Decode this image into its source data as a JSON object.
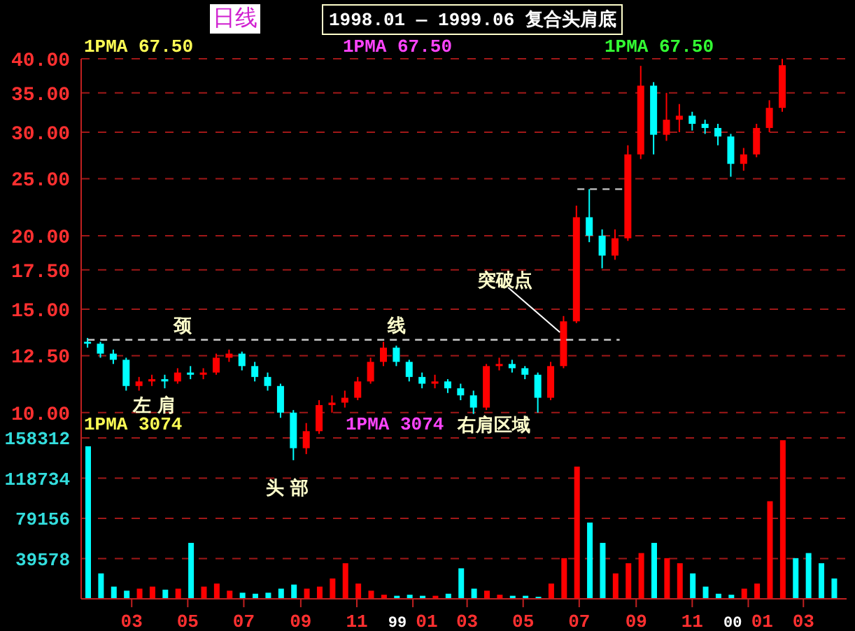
{
  "chart_data": [
    {
      "type": "candlestick",
      "title": "1998.01 — 1999.06 复合头肩底",
      "subtitle": "日线",
      "x": [
        "1998-01-12",
        "1998-01-26",
        "1998-02-09",
        "1998-02-23",
        "1998-03-09",
        "1998-03-23",
        "1998-04-06",
        "1998-04-20",
        "1998-05-04",
        "1998-05-18",
        "1998-06-01",
        "1998-06-15",
        "1998-06-29",
        "1998-07-13",
        "1998-07-27",
        "1998-08-10",
        "1998-08-24",
        "1998-09-07",
        "1998-09-21",
        "1998-10-05",
        "1998-10-19",
        "1998-11-02",
        "1998-11-16",
        "1998-11-30",
        "1998-12-14",
        "1998-12-28",
        "1999-01-11",
        "1999-01-25",
        "1999-02-08",
        "1999-02-22",
        "1999-03-08",
        "1999-03-22",
        "1999-04-05",
        "1999-04-19",
        "1999-05-03",
        "1999-05-17",
        "1999-05-31",
        "1999-06-14",
        "1999-06-28",
        "1999-07-12",
        "1999-07-26",
        "1999-08-09",
        "1999-08-23",
        "1999-09-06",
        "1999-09-20",
        "1999-10-04",
        "1999-10-18",
        "1999-11-01",
        "1999-11-15",
        "1999-11-29",
        "1999-12-13",
        "1999-12-27",
        "2000-01-10",
        "2000-01-24",
        "2000-02-07"
      ],
      "ohlc": [
        [
          13.2,
          13.4,
          12.9,
          13.1
        ],
        [
          13.1,
          13.2,
          12.4,
          12.6
        ],
        [
          12.6,
          12.8,
          12.1,
          12.3
        ],
        [
          12.3,
          12.4,
          10.9,
          11.1
        ],
        [
          11.1,
          11.5,
          10.9,
          11.3
        ],
        [
          11.3,
          11.6,
          11.1,
          11.4
        ],
        [
          11.4,
          11.6,
          11.0,
          11.3
        ],
        [
          11.3,
          11.9,
          11.2,
          11.7
        ],
        [
          11.7,
          12.0,
          11.4,
          11.6
        ],
        [
          11.6,
          11.9,
          11.4,
          11.7
        ],
        [
          11.7,
          12.6,
          11.6,
          12.4
        ],
        [
          12.4,
          12.8,
          12.2,
          12.6
        ],
        [
          12.6,
          12.7,
          11.8,
          12.0
        ],
        [
          12.0,
          12.2,
          11.3,
          11.5
        ],
        [
          11.5,
          11.7,
          10.9,
          11.1
        ],
        [
          11.1,
          11.2,
          9.8,
          10.0
        ],
        [
          10.0,
          10.1,
          8.3,
          8.7
        ],
        [
          8.7,
          9.6,
          8.5,
          9.3
        ],
        [
          9.3,
          10.5,
          9.2,
          10.3
        ],
        [
          10.3,
          10.7,
          10.0,
          10.4
        ],
        [
          10.4,
          10.9,
          10.2,
          10.6
        ],
        [
          10.6,
          11.5,
          10.5,
          11.3
        ],
        [
          11.3,
          12.4,
          11.2,
          12.2
        ],
        [
          12.2,
          13.2,
          12.0,
          12.9
        ],
        [
          12.9,
          13.0,
          12.0,
          12.2
        ],
        [
          12.2,
          12.3,
          11.3,
          11.5
        ],
        [
          11.5,
          11.7,
          11.0,
          11.2
        ],
        [
          11.2,
          11.6,
          11.0,
          11.3
        ],
        [
          11.3,
          11.4,
          10.8,
          11.0
        ],
        [
          11.0,
          11.2,
          10.5,
          10.7
        ],
        [
          10.7,
          10.9,
          9.95,
          10.2
        ],
        [
          10.2,
          12.1,
          10.1,
          12.0
        ],
        [
          12.0,
          12.4,
          11.8,
          12.1
        ],
        [
          12.1,
          12.3,
          11.7,
          11.9
        ],
        [
          11.9,
          12.0,
          11.4,
          11.6
        ],
        [
          11.6,
          11.7,
          10.0,
          10.6
        ],
        [
          10.6,
          12.2,
          10.5,
          12.0
        ],
        [
          12.0,
          14.6,
          11.9,
          14.3
        ],
        [
          14.3,
          22.5,
          14.2,
          21.5
        ],
        [
          21.5,
          24.0,
          19.5,
          20.0
        ],
        [
          20.0,
          20.5,
          17.6,
          18.5
        ],
        [
          18.5,
          20.5,
          18.2,
          19.8
        ],
        [
          19.8,
          28.5,
          19.6,
          27.5
        ],
        [
          27.5,
          38.9,
          27.0,
          36.0
        ],
        [
          36.0,
          36.5,
          27.5,
          29.7
        ],
        [
          29.7,
          35.0,
          29.0,
          31.5
        ],
        [
          31.5,
          33.5,
          30.0,
          32.0
        ],
        [
          32.0,
          32.5,
          30.2,
          31.0
        ],
        [
          31.0,
          31.5,
          29.8,
          30.5
        ],
        [
          30.5,
          31.0,
          28.5,
          29.5
        ],
        [
          29.5,
          29.8,
          25.2,
          26.5
        ],
        [
          26.5,
          28.2,
          25.8,
          27.5
        ],
        [
          27.5,
          31.0,
          27.2,
          30.5
        ],
        [
          30.5,
          34.0,
          30.0,
          33.0
        ],
        [
          33.0,
          40.0,
          32.5,
          39.0
        ]
      ],
      "colors": [
        "#00ffff",
        "#00ffff",
        "#00ffff",
        "#00ffff",
        "#ff0000",
        "#ff0000",
        "#00ffff",
        "#ff0000",
        "#00ffff",
        "#ff0000",
        "#ff0000",
        "#ff0000",
        "#00ffff",
        "#00ffff",
        "#00ffff",
        "#00ffff",
        "#00ffff",
        "#ff0000",
        "#ff0000",
        "#ff0000",
        "#ff0000",
        "#ff0000",
        "#ff0000",
        "#ff0000",
        "#00ffff",
        "#00ffff",
        "#00ffff",
        "#ff0000",
        "#00ffff",
        "#00ffff",
        "#00ffff",
        "#ff0000",
        "#ff0000",
        "#00ffff",
        "#00ffff",
        "#00ffff",
        "#ff0000",
        "#ff0000",
        "#ff0000",
        "#00ffff",
        "#00ffff",
        "#ff0000",
        "#ff0000",
        "#ff0000",
        "#00ffff",
        "#ff0000",
        "#ff0000",
        "#00ffff",
        "#00ffff",
        "#00ffff",
        "#00ffff",
        "#ff0000",
        "#ff0000",
        "#ff0000",
        "#ff0000"
      ],
      "series": [
        {
          "type": "line",
          "x": [
            "1998-01-12",
            "1999-08-14"
          ],
          "values": [
            13.3,
            13.3
          ],
          "color": "#c8c8c8",
          "line_style": "dashed",
          "marker": "none"
        },
        {
          "type": "line",
          "x": [
            "1999-06-29",
            "1999-08-21"
          ],
          "values": [
            24.0,
            24.0
          ],
          "color": "#c8c8c8",
          "line_style": "dashed",
          "marker": "none"
        }
      ],
      "xlim": [
        "1998-01-05",
        "2000-04-17"
      ],
      "ylim": [
        7,
        40
      ],
      "yticks": [
        {
          "value": 10,
          "label": "10.00"
        },
        {
          "value": 12.5,
          "label": "12.50"
        },
        {
          "value": 15,
          "label": "15.00"
        },
        {
          "value": 17.5,
          "label": "17.50"
        },
        {
          "value": 20,
          "label": "20.00"
        },
        {
          "value": 25,
          "label": "25.00"
        },
        {
          "value": 30,
          "label": "30.00"
        },
        {
          "value": 35,
          "label": "35.00"
        },
        {
          "value": 40,
          "label": "40.00"
        }
      ],
      "log": true,
      "grid": "y",
      "tick_labels": "y",
      "annotations": [
        "1PMA 67.50",
        "1PMA 67.50",
        "1PMA 67.50",
        "颈",
        "线",
        "左 肩",
        "头 部",
        "右肩区域",
        {
          "text": "突破点",
          "x": "1999-06-10",
          "y": 13.7
        }
      ]
    },
    {
      "type": "bar",
      "x": [
        "1998-01-12",
        "1998-01-26",
        "1998-02-09",
        "1998-02-23",
        "1998-03-09",
        "1998-03-23",
        "1998-04-06",
        "1998-04-20",
        "1998-05-04",
        "1998-05-18",
        "1998-06-01",
        "1998-06-15",
        "1998-06-29",
        "1998-07-13",
        "1998-07-27",
        "1998-08-10",
        "1998-08-24",
        "1998-09-07",
        "1998-09-21",
        "1998-10-05",
        "1998-10-19",
        "1998-11-02",
        "1998-11-16",
        "1998-11-30",
        "1998-12-14",
        "1998-12-28",
        "1999-01-11",
        "1999-01-25",
        "1999-02-08",
        "1999-02-22",
        "1999-03-08",
        "1999-03-22",
        "1999-04-05",
        "1999-04-19",
        "1999-05-03",
        "1999-05-17",
        "1999-05-31",
        "1999-06-14",
        "1999-06-28",
        "1999-07-12",
        "1999-07-26",
        "1999-08-09",
        "1999-08-23",
        "1999-09-06",
        "1999-09-20",
        "1999-10-04",
        "1999-10-18",
        "1999-11-01",
        "1999-11-15",
        "1999-11-29",
        "1999-12-13",
        "1999-12-27",
        "2000-01-10",
        "2000-01-24",
        "2000-02-07",
        "2000-02-21",
        "2000-03-06",
        "2000-03-20",
        "2000-04-03"
      ],
      "values": [
        150000,
        25000,
        12000,
        8000,
        10000,
        12000,
        9000,
        10000,
        55000,
        12000,
        15000,
        8000,
        6000,
        5000,
        6000,
        10000,
        14000,
        10000,
        12000,
        20000,
        35000,
        15000,
        8000,
        4000,
        3000,
        4000,
        3000,
        3000,
        5000,
        30000,
        10000,
        8000,
        4000,
        3000,
        3000,
        2000,
        15000,
        40000,
        130000,
        75000,
        55000,
        25000,
        35000,
        45000,
        55000,
        40000,
        35000,
        25000,
        12000,
        5000,
        4000,
        10000,
        15000,
        96000,
        156000,
        40000,
        45000,
        35000,
        20000
      ],
      "colors": [
        "#00ffff",
        "#00ffff",
        "#00ffff",
        "#00ffff",
        "#ff0000",
        "#ff0000",
        "#00ffff",
        "#ff0000",
        "#00ffff",
        "#ff0000",
        "#ff0000",
        "#ff0000",
        "#00ffff",
        "#00ffff",
        "#00ffff",
        "#00ffff",
        "#00ffff",
        "#ff0000",
        "#ff0000",
        "#ff0000",
        "#ff0000",
        "#ff0000",
        "#ff0000",
        "#ff0000",
        "#00ffff",
        "#00ffff",
        "#00ffff",
        "#ff0000",
        "#00ffff",
        "#00ffff",
        "#00ffff",
        "#ff0000",
        "#ff0000",
        "#00ffff",
        "#00ffff",
        "#00ffff",
        "#ff0000",
        "#ff0000",
        "#ff0000",
        "#00ffff",
        "#00ffff",
        "#ff0000",
        "#ff0000",
        "#ff0000",
        "#00ffff",
        "#ff0000",
        "#ff0000",
        "#00ffff",
        "#00ffff",
        "#00ffff",
        "#00ffff",
        "#ff0000",
        "#ff0000",
        "#ff0000",
        "#ff0000",
        "#00ffff",
        "#00ffff",
        "#00ffff",
        "#00ffff"
      ],
      "xlim": [
        "1998-01-05",
        "2000-04-17"
      ],
      "xticks": [
        {
          "value": "1998-03-01",
          "label": "03"
        },
        {
          "value": "1998-05-01",
          "label": "05"
        },
        {
          "value": "1998-07-01",
          "label": "07"
        },
        {
          "value": "1998-09-01",
          "label": "09"
        },
        {
          "value": "1998-11-01",
          "label": "11"
        },
        {
          "value": "1999-01-01",
          "label": "99 01"
        },
        {
          "value": "1999-03-01",
          "label": "03"
        },
        {
          "value": "1999-05-01",
          "label": "05"
        },
        {
          "value": "1999-07-01",
          "label": "07"
        },
        {
          "value": "1999-09-01",
          "label": "09"
        },
        {
          "value": "1999-11-01",
          "label": "11"
        },
        {
          "value": "2000-01-01",
          "label": "00 01"
        },
        {
          "value": "2000-03-01",
          "label": "03"
        }
      ],
      "ylim": [
        0,
        183000
      ],
      "yticks": [
        39578,
        79156,
        118734,
        158312
      ],
      "grid": "y",
      "annotations": [
        "1PMA 3074",
        "1PMA 3074"
      ]
    }
  ]
}
